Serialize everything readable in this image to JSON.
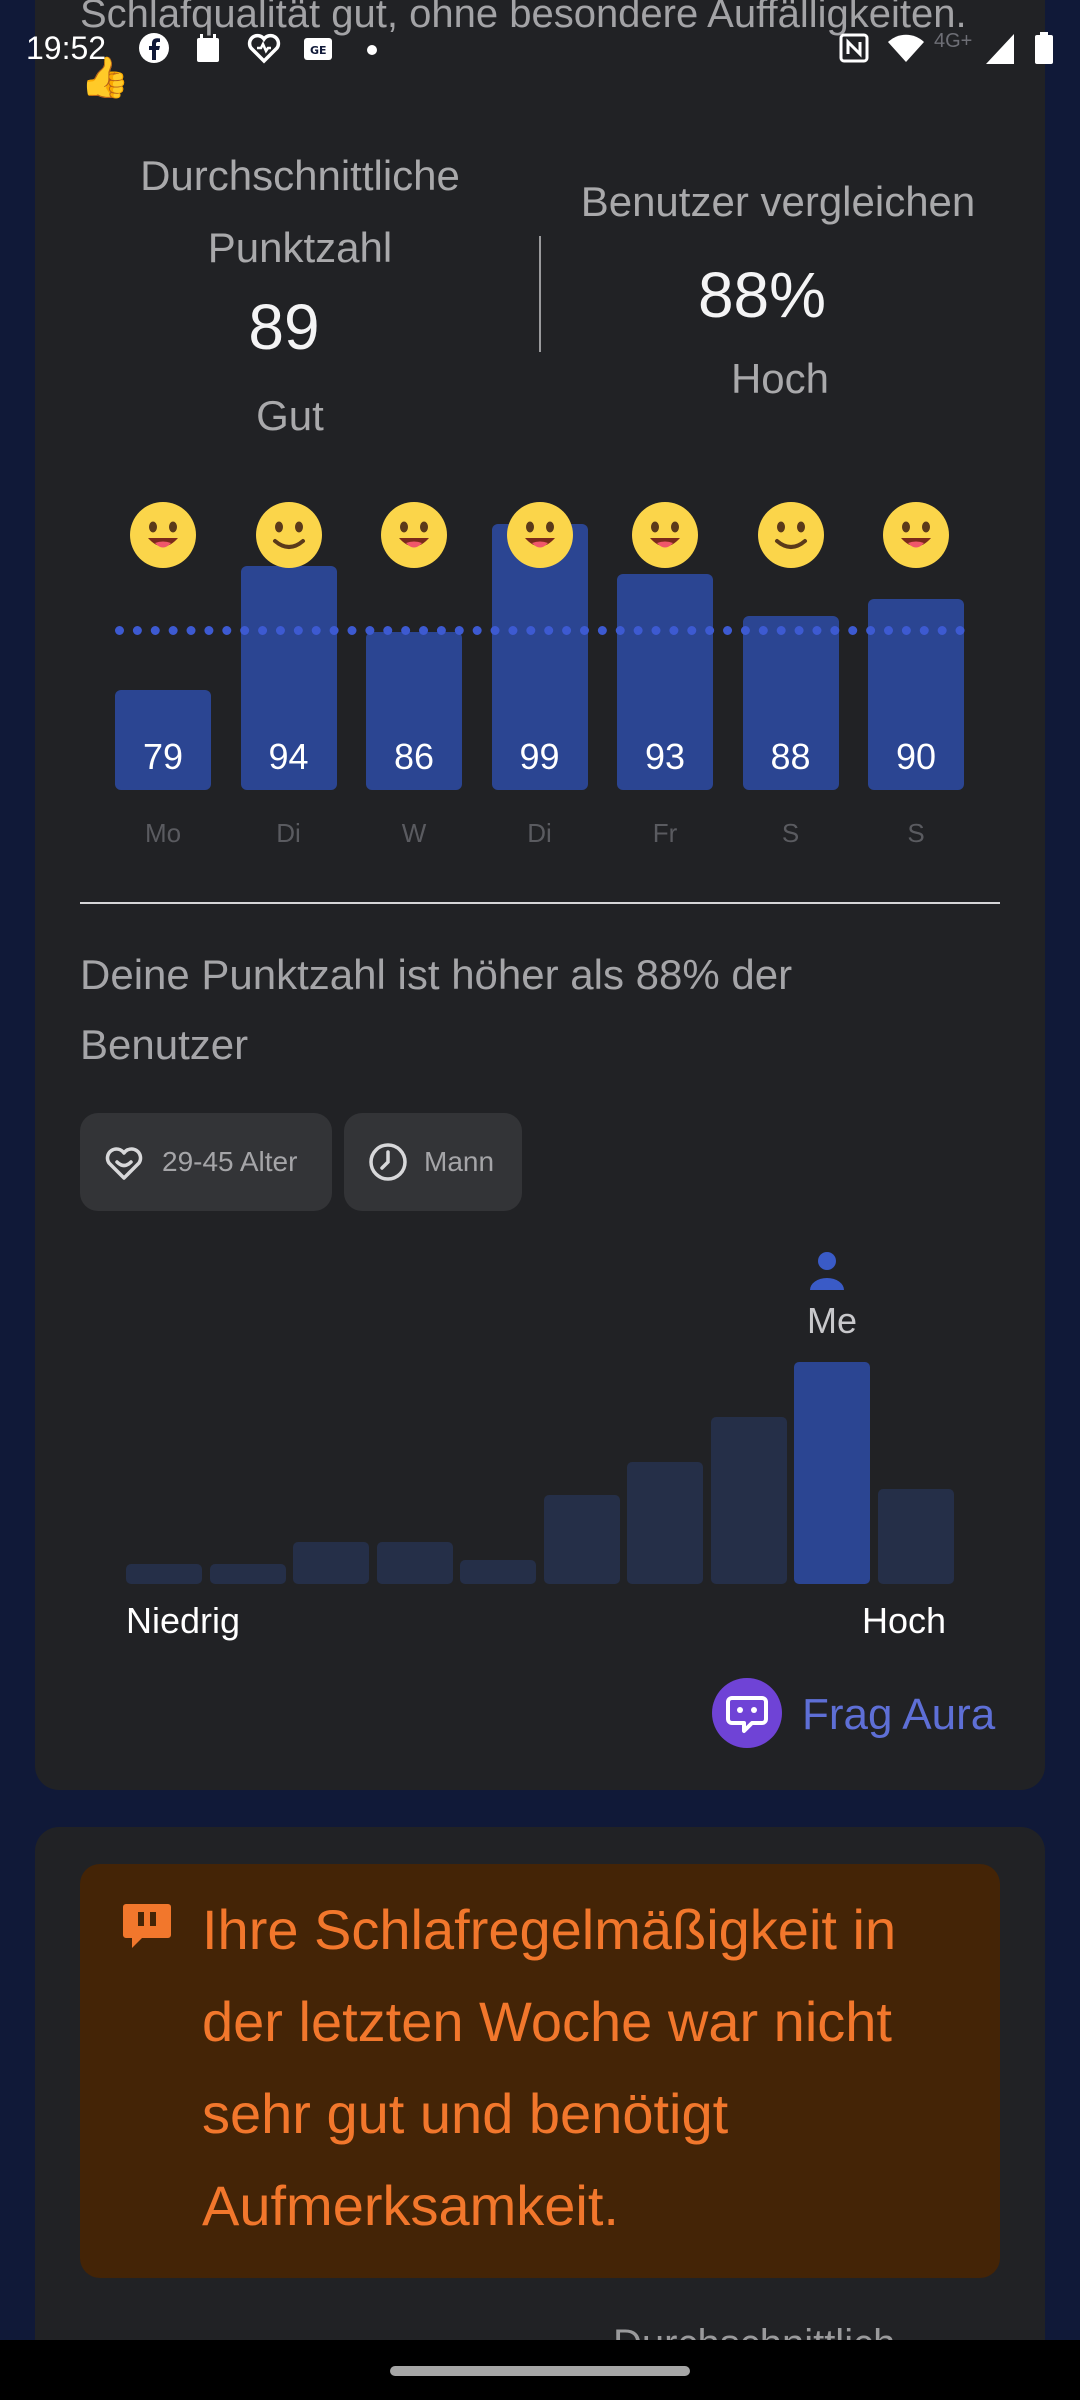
{
  "status_bar": {
    "time": "19:52",
    "network": "4G+",
    "icons": [
      "facebook-icon",
      "calendar-icon",
      "health-icon",
      "news-icon",
      "dot-icon",
      "nfc-icon",
      "wifi-icon",
      "signal-icon",
      "battery-icon"
    ]
  },
  "summary": {
    "top_text": "Schlafqualität gut, ohne besondere Auffälligkeiten. 👍",
    "avg_label": "Durchschnittliche Punktzahl",
    "avg_value": "89",
    "avg_rating": "Gut",
    "compare_label": "Benutzer vergleichen",
    "compare_value": "88%",
    "compare_rating": "Hoch"
  },
  "chart_data": {
    "type": "bar",
    "categories": [
      "Mo",
      "Di",
      "W",
      "Di",
      "Fr",
      "S",
      "S"
    ],
    "values": [
      79,
      94,
      86,
      99,
      93,
      88,
      90
    ],
    "reference_line": 89,
    "ylim": [
      0,
      105
    ],
    "day_emojis": [
      "smile-tongue",
      "smile",
      "smile-tongue",
      "smile-tongue",
      "smile-tongue",
      "smile",
      "smile-tongue"
    ],
    "colors": {
      "bar": "#2b4592",
      "reference": "#3d5ad1"
    }
  },
  "comparison": {
    "text": "Deine Punktzahl ist höher als 88% der Benutzer",
    "chips": [
      {
        "label": "29-45 Alter",
        "icon": "heart-smile-icon"
      },
      {
        "label": "Mann",
        "icon": "clock-icon"
      }
    ],
    "me_label": "Me",
    "low_label": "Niedrig",
    "high_label": "Hoch",
    "distribution": {
      "values": [
        0.09,
        0.09,
        0.19,
        0.19,
        0.11,
        0.4,
        0.55,
        0.75,
        1.0,
        0.43
      ],
      "me_index": 8
    }
  },
  "ask_aura": {
    "label": "Frag Aura"
  },
  "alert": {
    "text": "Ihre Schlafregelmäßigkeit in der letzten Woche war nicht sehr gut und benötigt Aufmerksamkeit.",
    "color": "#f2772c"
  },
  "next_card_peek": "Durchschnittlich"
}
